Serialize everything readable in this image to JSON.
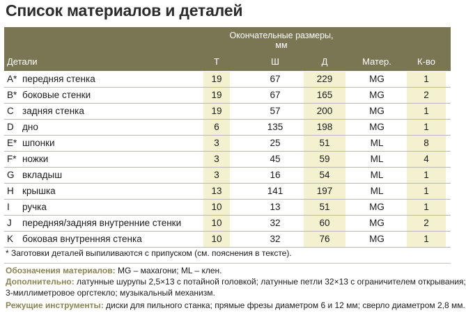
{
  "title": "Список материалов и деталей",
  "table": {
    "group_header": "Окончательные размеры, мм",
    "headers": {
      "part": "Детали",
      "t": "Т",
      "w": "Ш",
      "l": "Д",
      "material": "Матер.",
      "qty": "К-во"
    },
    "rows": [
      {
        "letter": "A*",
        "name": "передняя стенка",
        "t": "19",
        "w": "67",
        "l": "229",
        "material": "MG",
        "qty": "1"
      },
      {
        "letter": "B*",
        "name": "боковые стенки",
        "t": "19",
        "w": "67",
        "l": "165",
        "material": "MG",
        "qty": "2"
      },
      {
        "letter": "C",
        "name": "задняя стенка",
        "t": "19",
        "w": "57",
        "l": "200",
        "material": "MG",
        "qty": "1"
      },
      {
        "letter": "D",
        "name": "дно",
        "t": "6",
        "w": "135",
        "l": "198",
        "material": "MG",
        "qty": "1"
      },
      {
        "letter": "E*",
        "name": "шпонки",
        "t": "3",
        "w": "25",
        "l": "51",
        "material": "ML",
        "qty": "8"
      },
      {
        "letter": "F*",
        "name": "ножки",
        "t": "3",
        "w": "45",
        "l": "59",
        "material": "ML",
        "qty": "4"
      },
      {
        "letter": "G",
        "name": "вкладыш",
        "t": "3",
        "w": "16",
        "l": "54",
        "material": "ML",
        "qty": "1"
      },
      {
        "letter": "H",
        "name": "крышка",
        "t": "13",
        "w": "141",
        "l": "197",
        "material": "ML",
        "qty": "1"
      },
      {
        "letter": "I",
        "name": "ручка",
        "t": "10",
        "w": "13",
        "l": "51",
        "material": "MG",
        "qty": "1"
      },
      {
        "letter": "J",
        "name": "передняя/задняя внутренние стенки",
        "t": "10",
        "w": "32",
        "l": "60",
        "material": "MG",
        "qty": "2"
      },
      {
        "letter": "K",
        "name": "боковая внутренняя стенка",
        "t": "10",
        "w": "32",
        "l": "76",
        "material": "MG",
        "qty": "1"
      }
    ]
  },
  "footnote": "* Заготовки деталей выпиливаются с припуском (см. пояснения в тексте).",
  "legend": {
    "materials_label": "Обозначения материалов:",
    "materials_text": "MG – махагони; ML – клен.",
    "extra_label": "Дополнительно:",
    "extra_text_1": "латунные шурупы 2,5×13 с потайной головкой; латунные петли 32×13 с ограничителем открывания;",
    "extra_text_2": "3-миллиметровое оргстекло; музыкальный механизм.",
    "tools_label": "Режущие инструменты:",
    "tools_text": "диски для пильного станка; прямые фрезы диаметром 6 и 12 мм; сверло диаметром 2,8 мм."
  },
  "colors": {
    "header_bg": "#7a7553",
    "highlight_band": "#f3f1cf",
    "label_color": "#8a8455"
  }
}
